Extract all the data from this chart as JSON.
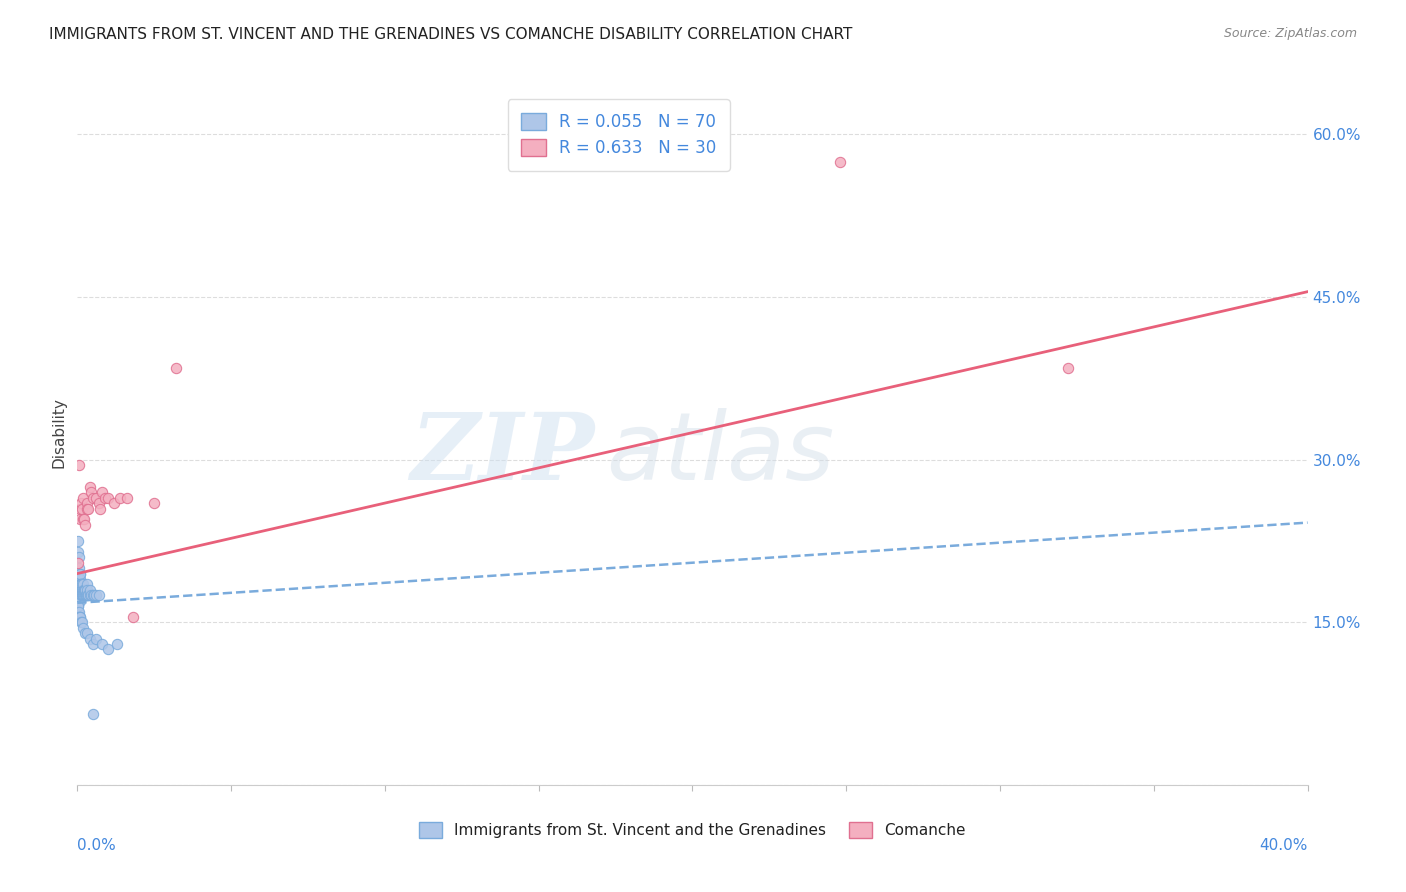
{
  "title": "IMMIGRANTS FROM ST. VINCENT AND THE GRENADINES VS COMANCHE DISABILITY CORRELATION CHART",
  "source": "Source: ZipAtlas.com",
  "ylabel": "Disability",
  "right_yticks": [
    0.0,
    0.15,
    0.3,
    0.45,
    0.6
  ],
  "right_yticklabels": [
    "",
    "15.0%",
    "30.0%",
    "45.0%",
    "60.0%"
  ],
  "blue_scatter_x": [
    0.0002,
    0.0003,
    0.0003,
    0.0004,
    0.0005,
    0.0006,
    0.0006,
    0.0007,
    0.0008,
    0.0008,
    0.0009,
    0.0009,
    0.001,
    0.001,
    0.001,
    0.001,
    0.001,
    0.0012,
    0.0012,
    0.0013,
    0.0013,
    0.0014,
    0.0015,
    0.0015,
    0.0016,
    0.0017,
    0.0018,
    0.0019,
    0.002,
    0.002,
    0.0021,
    0.0022,
    0.0023,
    0.0024,
    0.0025,
    0.0026,
    0.0027,
    0.0028,
    0.003,
    0.003,
    0.0032,
    0.0034,
    0.0035,
    0.004,
    0.0042,
    0.0045,
    0.005,
    0.0055,
    0.006,
    0.007,
    0.0001,
    0.0002,
    0.0003,
    0.0004,
    0.0005,
    0.0006,
    0.0008,
    0.001,
    0.0012,
    0.0015,
    0.002,
    0.0025,
    0.003,
    0.004,
    0.005,
    0.006,
    0.008,
    0.01,
    0.013,
    0.005
  ],
  "blue_scatter_y": [
    0.225,
    0.215,
    0.195,
    0.21,
    0.19,
    0.2,
    0.185,
    0.19,
    0.185,
    0.195,
    0.19,
    0.18,
    0.195,
    0.185,
    0.18,
    0.175,
    0.17,
    0.185,
    0.18,
    0.185,
    0.175,
    0.18,
    0.185,
    0.175,
    0.18,
    0.175,
    0.18,
    0.175,
    0.185,
    0.175,
    0.18,
    0.18,
    0.175,
    0.18,
    0.175,
    0.18,
    0.175,
    0.175,
    0.185,
    0.175,
    0.18,
    0.175,
    0.175,
    0.175,
    0.18,
    0.175,
    0.175,
    0.175,
    0.175,
    0.175,
    0.165,
    0.16,
    0.165,
    0.155,
    0.16,
    0.155,
    0.155,
    0.155,
    0.15,
    0.15,
    0.145,
    0.14,
    0.14,
    0.135,
    0.13,
    0.135,
    0.13,
    0.125,
    0.13,
    0.065
  ],
  "pink_scatter_x": [
    0.0002,
    0.0005,
    0.0008,
    0.001,
    0.0012,
    0.0015,
    0.0018,
    0.002,
    0.0022,
    0.0025,
    0.003,
    0.0032,
    0.0035,
    0.004,
    0.0045,
    0.005,
    0.006,
    0.007,
    0.0075,
    0.008,
    0.009,
    0.01,
    0.012,
    0.014,
    0.016,
    0.018,
    0.025,
    0.032,
    0.248,
    0.322
  ],
  "pink_scatter_y": [
    0.205,
    0.295,
    0.245,
    0.255,
    0.26,
    0.255,
    0.245,
    0.265,
    0.245,
    0.24,
    0.26,
    0.255,
    0.255,
    0.275,
    0.27,
    0.265,
    0.265,
    0.26,
    0.255,
    0.27,
    0.265,
    0.265,
    0.26,
    0.265,
    0.265,
    0.155,
    0.26,
    0.385,
    0.575,
    0.385
  ],
  "blue_line_x": [
    0.0,
    0.4
  ],
  "blue_line_y": [
    0.168,
    0.242
  ],
  "pink_line_x": [
    0.0,
    0.4
  ],
  "pink_line_y": [
    0.195,
    0.455
  ],
  "watermark": "ZIPatlas",
  "scatter_size": 55,
  "blue_color": "#aec6e8",
  "pink_color": "#f4afc0",
  "blue_line_color": "#7aabdc",
  "pink_line_color": "#e8607a",
  "title_fontsize": 11,
  "axis_color": "#4488dd",
  "xmin": 0.0,
  "xmax": 0.4,
  "ymin": 0.0,
  "ymax": 0.65
}
